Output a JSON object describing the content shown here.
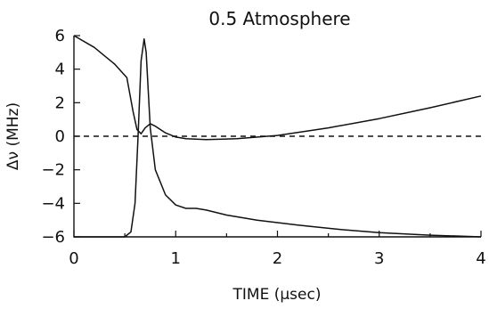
{
  "chart_data": {
    "type": "line",
    "title": "0.5 Atmosphere",
    "xlabel": "TIME (μsec)",
    "ylabel": "Δν (MHz)",
    "xlim": [
      0,
      4
    ],
    "ylim": [
      -6,
      6
    ],
    "xticks": [
      "0",
      "1",
      "2",
      "3",
      "4"
    ],
    "yticks": [
      "6",
      "4",
      "2",
      "0",
      "-2",
      "-4",
      "-6"
    ],
    "grid": false,
    "legend": "none",
    "reference_line": {
      "y": 0,
      "style": "dashed"
    },
    "series": [
      {
        "x": [
          0,
          0.2,
          0.4,
          0.52,
          0.58,
          0.62,
          0.66,
          0.7,
          0.75,
          0.8,
          0.9,
          1.0,
          1.1,
          1.3,
          1.6,
          2.0,
          2.5,
          3.0,
          3.5,
          4.0
        ],
        "y": [
          6.0,
          5.3,
          4.3,
          3.5,
          1.5,
          0.4,
          0.15,
          0.5,
          0.75,
          0.6,
          0.2,
          -0.05,
          -0.15,
          -0.2,
          -0.15,
          0.05,
          0.5,
          1.05,
          1.7,
          2.4
        ]
      },
      {
        "x": [
          0,
          0.3,
          0.5,
          0.56,
          0.6,
          0.63,
          0.66,
          0.69,
          0.71,
          0.75,
          0.8,
          0.9,
          1.0,
          1.1,
          1.2,
          1.3,
          1.5,
          1.8,
          2.2,
          2.6,
          3.0,
          3.5,
          4.0
        ],
        "y": [
          -6.0,
          -6.0,
          -6.0,
          -5.7,
          -4.0,
          0.0,
          4.5,
          5.8,
          5.0,
          0.5,
          -2.0,
          -3.5,
          -4.1,
          -4.3,
          -4.3,
          -4.4,
          -4.7,
          -5.0,
          -5.3,
          -5.55,
          -5.75,
          -5.9,
          -6.0
        ]
      }
    ]
  }
}
